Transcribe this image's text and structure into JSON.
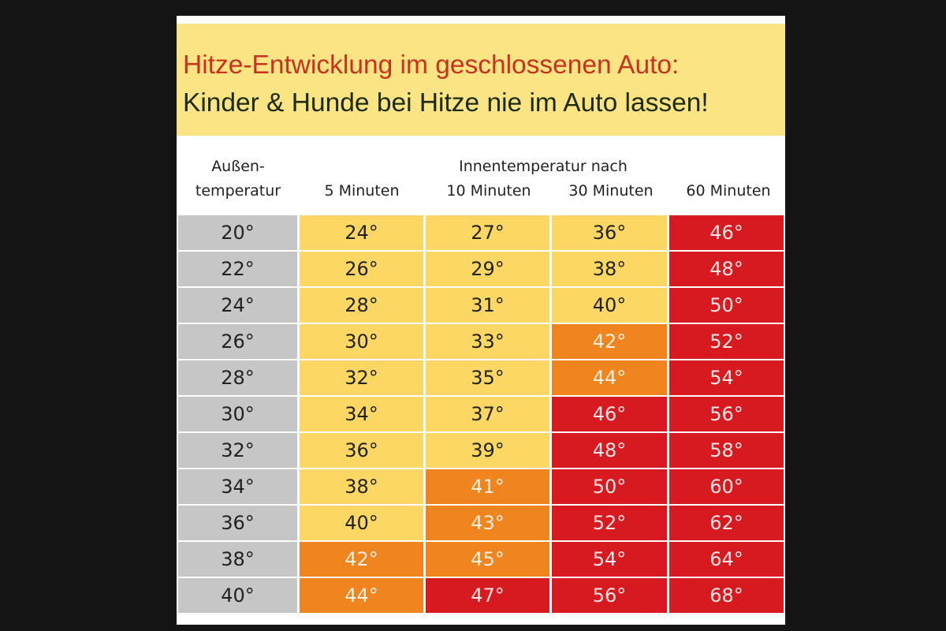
{
  "title": {
    "line1": "Hitze-Entwicklung im geschlossenen Auto:",
    "line2": "Kinder & Hunde bei Hitze nie im Auto lassen!"
  },
  "colors": {
    "banner_bg": "#fbe484",
    "title_red": "#c8321e",
    "gray": "#c6c6c6",
    "yellow": "#fcd763",
    "orange": "#f0841e",
    "red": "#d71a20"
  },
  "headers": {
    "outside_line1": "Außen-",
    "outside_line2": "temperatur",
    "inside_group": "Innentemperatur nach",
    "cols": [
      "5 Minuten",
      "10 Minuten",
      "30 Minuten",
      "60 Minuten"
    ]
  },
  "table": {
    "rows": [
      {
        "outside": "20°",
        "values": [
          "24°",
          "27°",
          "36°",
          "46°"
        ],
        "levels": [
          "yellow",
          "yellow",
          "yellow",
          "red"
        ]
      },
      {
        "outside": "22°",
        "values": [
          "26°",
          "29°",
          "38°",
          "48°"
        ],
        "levels": [
          "yellow",
          "yellow",
          "yellow",
          "red"
        ]
      },
      {
        "outside": "24°",
        "values": [
          "28°",
          "31°",
          "40°",
          "50°"
        ],
        "levels": [
          "yellow",
          "yellow",
          "yellow",
          "red"
        ]
      },
      {
        "outside": "26°",
        "values": [
          "30°",
          "33°",
          "42°",
          "52°"
        ],
        "levels": [
          "yellow",
          "yellow",
          "orange",
          "red"
        ]
      },
      {
        "outside": "28°",
        "values": [
          "32°",
          "35°",
          "44°",
          "54°"
        ],
        "levels": [
          "yellow",
          "yellow",
          "orange",
          "red"
        ]
      },
      {
        "outside": "30°",
        "values": [
          "34°",
          "37°",
          "46°",
          "56°"
        ],
        "levels": [
          "yellow",
          "yellow",
          "red",
          "red"
        ]
      },
      {
        "outside": "32°",
        "values": [
          "36°",
          "39°",
          "48°",
          "58°"
        ],
        "levels": [
          "yellow",
          "yellow",
          "red",
          "red"
        ]
      },
      {
        "outside": "34°",
        "values": [
          "38°",
          "41°",
          "50°",
          "60°"
        ],
        "levels": [
          "yellow",
          "orange",
          "red",
          "red"
        ]
      },
      {
        "outside": "36°",
        "values": [
          "40°",
          "43°",
          "52°",
          "62°"
        ],
        "levels": [
          "yellow",
          "orange",
          "red",
          "red"
        ]
      },
      {
        "outside": "38°",
        "values": [
          "42°",
          "45°",
          "54°",
          "64°"
        ],
        "levels": [
          "orange",
          "orange",
          "red",
          "red"
        ]
      },
      {
        "outside": "40°",
        "values": [
          "44°",
          "47°",
          "56°",
          "68°"
        ],
        "levels": [
          "orange",
          "red",
          "red",
          "red"
        ]
      }
    ]
  }
}
